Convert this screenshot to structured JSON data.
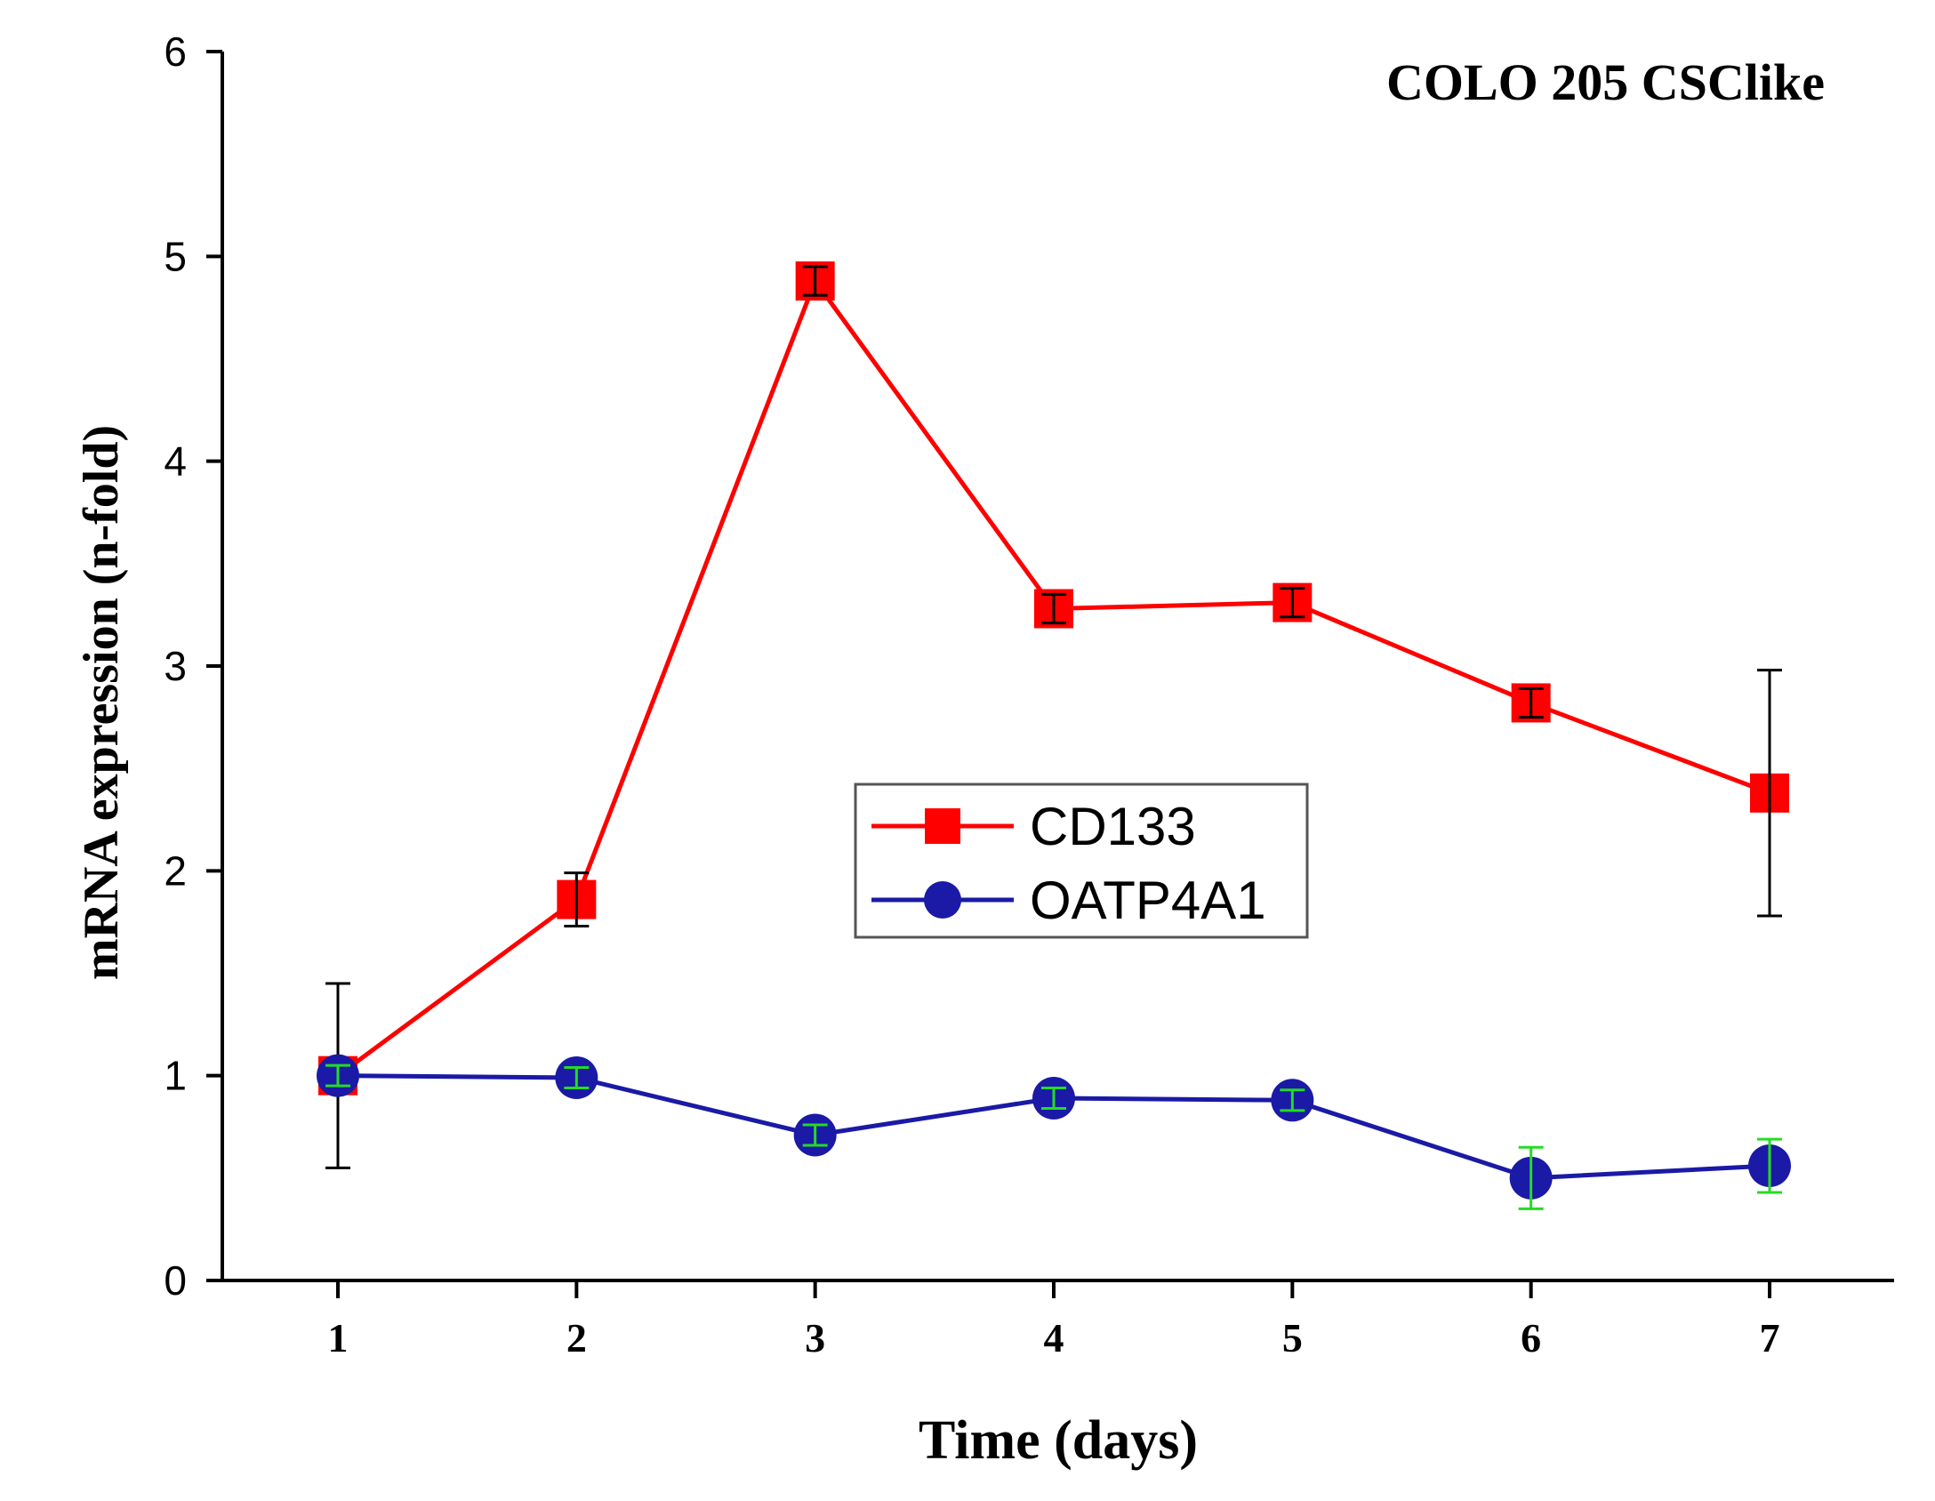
{
  "chart_data": {
    "type": "line",
    "title": "COLO 205 CSClike",
    "xlabel": "Time (days)",
    "ylabel": "mRNA expression (n-fold)",
    "x": [
      1,
      2,
      3,
      4,
      5,
      6,
      7
    ],
    "xticks": [
      "1",
      "2",
      "3",
      "4",
      "5",
      "6",
      "7"
    ],
    "ylim": [
      0,
      6
    ],
    "yticks": [
      "0",
      "1",
      "2",
      "3",
      "4",
      "5",
      "6"
    ],
    "grid": false,
    "legend_position": "center",
    "series": [
      {
        "name": "CD133",
        "values": [
          1.0,
          1.86,
          4.88,
          3.28,
          3.31,
          2.82,
          2.38
        ],
        "errors": [
          0.45,
          0.13,
          0.07,
          0.07,
          0.07,
          0.07,
          0.6
        ],
        "color": "#ff0000",
        "marker": "square",
        "error_color": "#000000"
      },
      {
        "name": "OATP4A1",
        "values": [
          1.0,
          0.99,
          0.71,
          0.89,
          0.88,
          0.5,
          0.56
        ],
        "errors": [
          0.05,
          0.05,
          0.05,
          0.05,
          0.05,
          0.15,
          0.13
        ],
        "color": "#1a1aa6",
        "marker": "circle",
        "error_color": "#22dd22"
      }
    ]
  }
}
